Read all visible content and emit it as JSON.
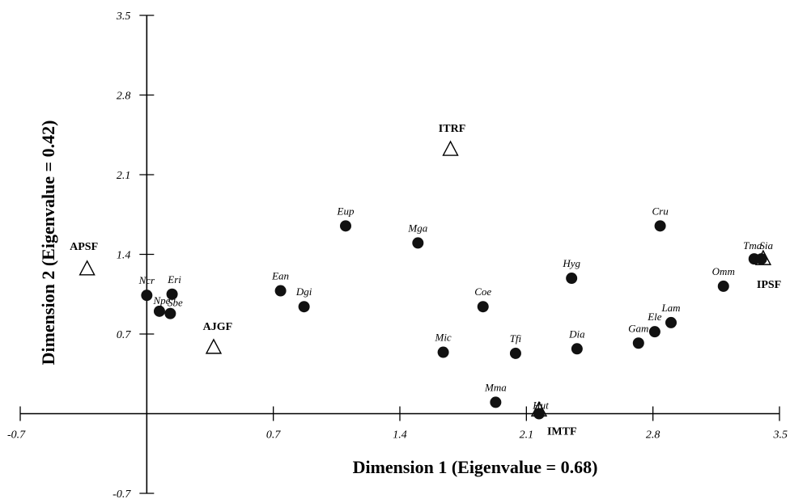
{
  "chart_data": {
    "type": "scatter",
    "xlabel": "Dimension 1 (Eigenvalue = 0.68)",
    "ylabel": "Dimension 2 (Eigenvalue = 0.42)",
    "xlim": [
      -0.7,
      3.5
    ],
    "ylim": [
      -0.7,
      3.5
    ],
    "x_ticks": [
      "-0.7",
      "0.7",
      "1.4",
      "2.1",
      "2.8",
      "3.5"
    ],
    "y_ticks": [
      "3.5",
      "2.8",
      "2.1",
      "1.4",
      "0.7",
      "-0.7"
    ],
    "grid": false,
    "legend": "none",
    "species": [
      {
        "label": "Ncr",
        "x": 0.0,
        "y": 1.04
      },
      {
        "label": "Eri",
        "x": 0.14,
        "y": 1.05
      },
      {
        "label": "Npe",
        "x": 0.07,
        "y": 0.9
      },
      {
        "label": "Sbe",
        "x": 0.13,
        "y": 0.88
      },
      {
        "label": "Ean",
        "x": 0.74,
        "y": 1.08
      },
      {
        "label": "Dgi",
        "x": 0.87,
        "y": 0.94
      },
      {
        "label": "Eup",
        "x": 1.1,
        "y": 1.65
      },
      {
        "label": "Mga",
        "x": 1.5,
        "y": 1.5
      },
      {
        "label": "Coe",
        "x": 1.86,
        "y": 0.94
      },
      {
        "label": "Mic",
        "x": 1.64,
        "y": 0.54
      },
      {
        "label": "Tfi",
        "x": 2.04,
        "y": 0.53
      },
      {
        "label": "Mma",
        "x": 1.93,
        "y": 0.1
      },
      {
        "label": "Hut",
        "x": 2.17,
        "y": 0.0
      },
      {
        "label": "Hyg",
        "x": 2.35,
        "y": 1.19
      },
      {
        "label": "Dia",
        "x": 2.38,
        "y": 0.57
      },
      {
        "label": "Cru",
        "x": 2.84,
        "y": 1.65
      },
      {
        "label": "Gam",
        "x": 2.72,
        "y": 0.62
      },
      {
        "label": "Ele",
        "x": 2.81,
        "y": 0.72
      },
      {
        "label": "Lam",
        "x": 2.9,
        "y": 0.8
      },
      {
        "label": "Omm",
        "x": 3.19,
        "y": 1.12
      },
      {
        "label": "Tma",
        "x": 3.36,
        "y": 1.36
      },
      {
        "label": "Sia",
        "x": 3.4,
        "y": 1.36
      }
    ],
    "sites": [
      {
        "label": "APSF",
        "x": -0.33,
        "y": 1.27
      },
      {
        "label": "AJGF",
        "x": 0.37,
        "y": 0.58
      },
      {
        "label": "ITRF",
        "x": 1.68,
        "y": 2.32
      },
      {
        "label": "IMTF",
        "x": 2.17,
        "y": 0.03
      },
      {
        "label": "IPSF",
        "x": 3.41,
        "y": 1.36
      }
    ]
  }
}
